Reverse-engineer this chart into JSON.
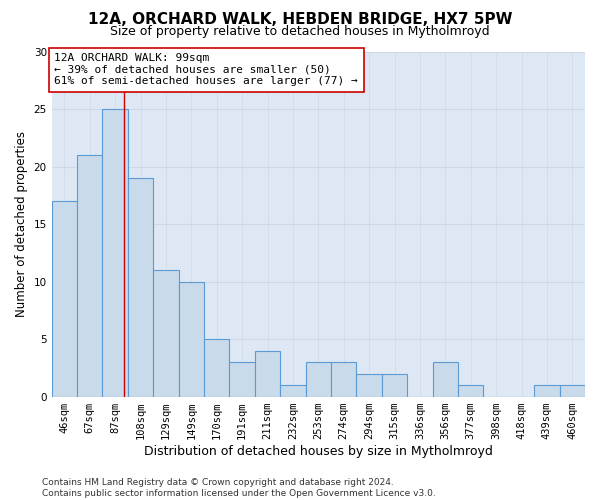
{
  "title": "12A, ORCHARD WALK, HEBDEN BRIDGE, HX7 5PW",
  "subtitle": "Size of property relative to detached houses in Mytholmroyd",
  "xlabel": "Distribution of detached houses by size in Mytholmroyd",
  "ylabel": "Number of detached properties",
  "categories": [
    "46sqm",
    "67sqm",
    "87sqm",
    "108sqm",
    "129sqm",
    "149sqm",
    "170sqm",
    "191sqm",
    "211sqm",
    "232sqm",
    "253sqm",
    "274sqm",
    "294sqm",
    "315sqm",
    "336sqm",
    "356sqm",
    "377sqm",
    "398sqm",
    "418sqm",
    "439sqm",
    "460sqm"
  ],
  "values": [
    17,
    21,
    25,
    19,
    11,
    10,
    5,
    3,
    4,
    1,
    3,
    3,
    2,
    2,
    0,
    3,
    1,
    0,
    0,
    1,
    1
  ],
  "bar_color": "#c9daea",
  "bar_edge_color": "#5b9bd5",
  "bar_linewidth": 0.8,
  "ylim": [
    0,
    30
  ],
  "yticks": [
    0,
    5,
    10,
    15,
    20,
    25,
    30
  ],
  "grid_color": "#d0d8e8",
  "bg_color": "#dde8f4",
  "vline_x": 2.33,
  "vline_color": "#cc0000",
  "annotation_text": "12A ORCHARD WALK: 99sqm\n← 39% of detached houses are smaller (50)\n61% of semi-detached houses are larger (77) →",
  "footer": "Contains HM Land Registry data © Crown copyright and database right 2024.\nContains public sector information licensed under the Open Government Licence v3.0.",
  "title_fontsize": 11,
  "subtitle_fontsize": 9,
  "xlabel_fontsize": 9,
  "ylabel_fontsize": 8.5,
  "tick_fontsize": 7.5,
  "annotation_fontsize": 8,
  "footer_fontsize": 6.5
}
